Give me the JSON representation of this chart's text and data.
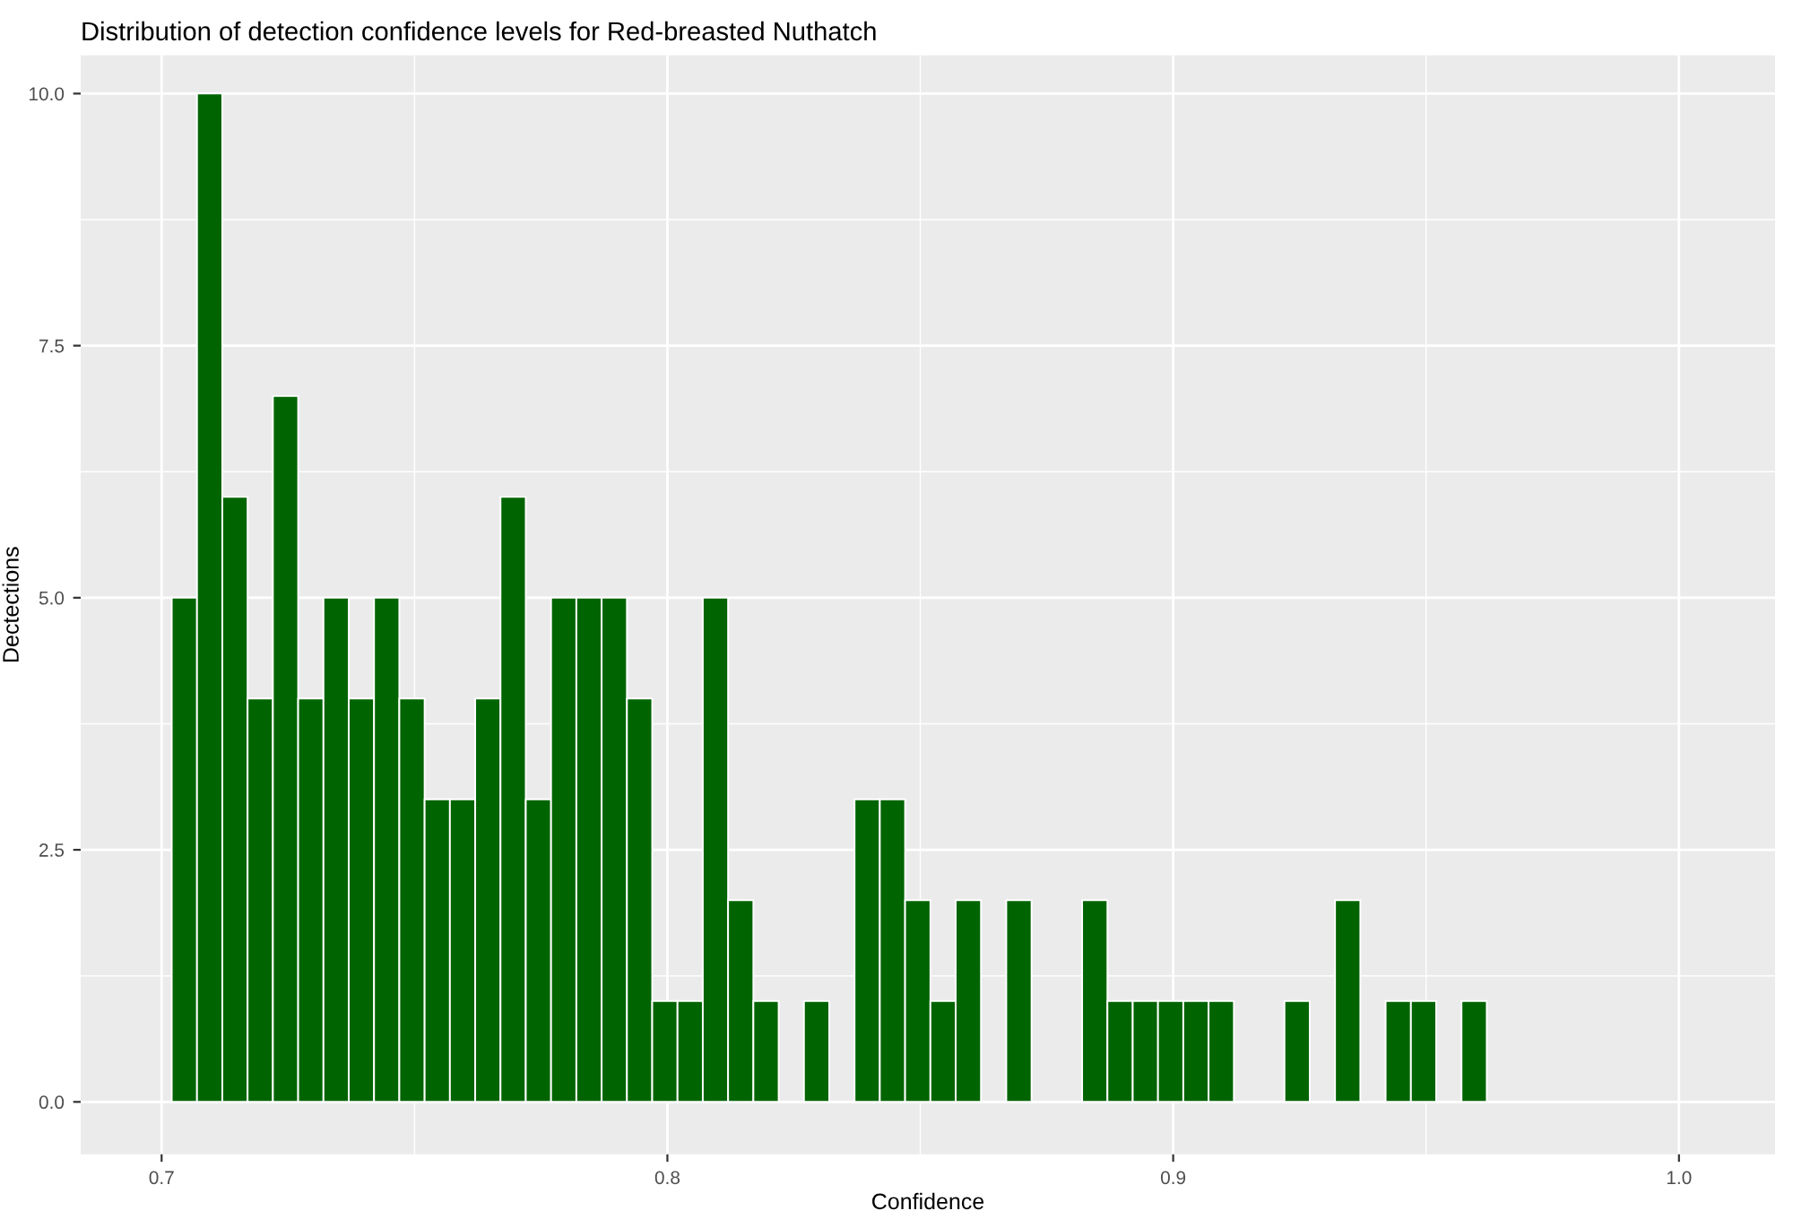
{
  "chart_data": {
    "type": "histogram",
    "title": "Distribution of detection confidence levels for Red-breasted Nuthatch",
    "xlabel": "Confidence",
    "ylabel": "Dectections",
    "bins": [
      0.702,
      0.707,
      0.712,
      0.717,
      0.722,
      0.727,
      0.732,
      0.737,
      0.742,
      0.747,
      0.752,
      0.757,
      0.762,
      0.767,
      0.772,
      0.777,
      0.782,
      0.787,
      0.792,
      0.797,
      0.802,
      0.807,
      0.812,
      0.817,
      0.822,
      0.827,
      0.832,
      0.837,
      0.842,
      0.847,
      0.852,
      0.857,
      0.862,
      0.867,
      0.872,
      0.877,
      0.882,
      0.887,
      0.892,
      0.897,
      0.902,
      0.907,
      0.912,
      0.917,
      0.922,
      0.927,
      0.932,
      0.937,
      0.942,
      0.947,
      0.952,
      0.957,
      0.962
    ],
    "values": [
      5,
      10,
      6,
      4,
      7,
      4,
      5,
      4,
      5,
      4,
      3,
      3,
      4,
      6,
      3,
      5,
      5,
      5,
      4,
      1,
      1,
      5,
      2,
      1,
      0,
      1,
      0,
      3,
      3,
      2,
      1,
      2,
      0,
      2,
      0,
      0,
      2,
      1,
      1,
      1,
      1,
      1,
      0,
      0,
      1,
      0,
      2,
      0,
      1,
      1,
      0,
      1
    ],
    "color": "#006400",
    "xlim": [
      0.684,
      1.019
    ],
    "ylim": [
      -0.52,
      10.38
    ],
    "xticks": [
      0.7,
      0.8,
      0.9,
      {
        "value": 1.0,
        "label": "1.0"
      }
    ],
    "yticks": [
      {
        "value": 0,
        "label": "0.0"
      },
      2.5,
      {
        "value": 5,
        "label": "5.0"
      },
      7.5,
      {
        "value": 10,
        "label": "10.0"
      }
    ],
    "grid": true
  }
}
